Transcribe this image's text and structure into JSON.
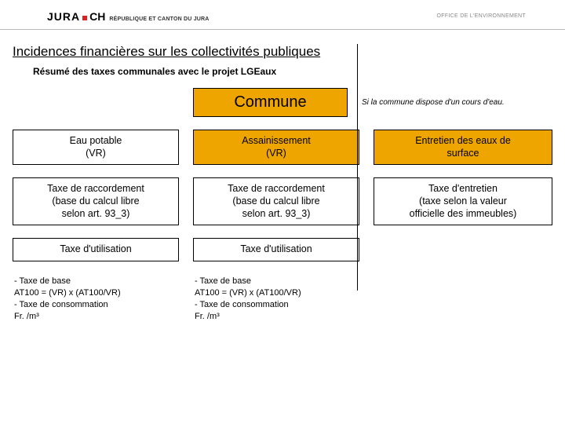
{
  "header": {
    "logo_main": "JURA",
    "logo_ch": "CH",
    "logo_sub": "RÉPUBLIQUE ET CANTON DU JURA",
    "office": "OFFICE DE L'ENVIRONNEMENT"
  },
  "page_title": "Incidences financières sur les collectivités publiques",
  "subtitle": "Résumé des taxes communales avec le projet LGEaux",
  "commune_box": "Commune",
  "commune_note": "Si la commune dispose d'un cours d'eau.",
  "colors": {
    "orange": "#eea500",
    "white": "#ffffff",
    "border": "#000000"
  },
  "columns": [
    {
      "header": "Eau potable\n(VR)",
      "header_bg": "white",
      "row2": "Taxe de raccordement\n(base du calcul libre\nselon art. 93_3)",
      "row3": "Taxe d'utilisation",
      "formula": [
        "-  Taxe de base",
        "AT100 = (VR) x (AT100/VR)",
        "-  Taxe de consommation",
        "Fr. /m³"
      ]
    },
    {
      "header": "Assainissement\n(VR)",
      "header_bg": "orange",
      "row2": "Taxe de raccordement\n(base du calcul libre\nselon art. 93_3)",
      "row3": "Taxe d'utilisation",
      "formula": [
        "-  Taxe de base",
        "AT100 = (VR) x (AT100/VR)",
        "-  Taxe de consommation",
        "Fr. /m³"
      ]
    },
    {
      "header": "Entretien des eaux de\nsurface",
      "header_bg": "orange",
      "row2": "Taxe d'entretien\n(taxe selon la valeur\nofficielle des immeubles)",
      "row3": null,
      "formula": null
    }
  ]
}
